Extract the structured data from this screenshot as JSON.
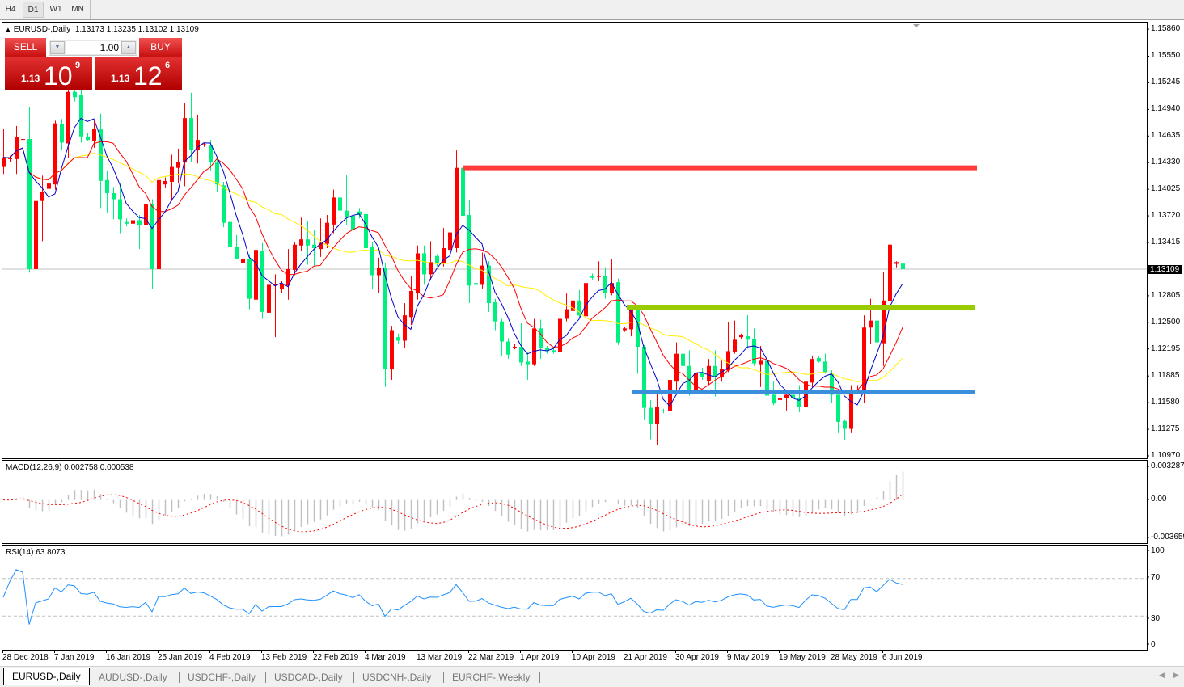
{
  "toolbar": {
    "timeframes": [
      "H4",
      "D1",
      "W1",
      "MN"
    ],
    "active": "D1"
  },
  "chart": {
    "symbol_title": "EURUSD-,Daily",
    "ohlc_readout": "1.13173 1.13235 1.13102 1.13109",
    "current_price": "1.13109",
    "price_axis": [
      "1.15860",
      "1.15550",
      "1.15245",
      "1.14940",
      "1.14635",
      "1.14330",
      "1.14025",
      "1.13720",
      "1.13415",
      "1.12805",
      "1.12500",
      "1.12195",
      "1.11885",
      "1.11580",
      "1.11275",
      "1.10970"
    ],
    "date_axis": [
      "28 Dec 2018",
      "7 Jan 2019",
      "16 Jan 2019",
      "25 Jan 2019",
      "4 Feb 2019",
      "13 Feb 2019",
      "22 Feb 2019",
      "4 Mar 2019",
      "13 Mar 2019",
      "22 Mar 2019",
      "1 Apr 2019",
      "10 Apr 2019",
      "21 Apr 2019",
      "30 Apr 2019",
      "9 May 2019",
      "19 May 2019",
      "28 May 2019",
      "6 Jun 2019"
    ]
  },
  "trade_panel": {
    "sell_label": "SELL",
    "buy_label": "BUY",
    "lot": "1.00",
    "sell_price": {
      "prefix": "1.13",
      "big": "10",
      "sup": "9"
    },
    "buy_price": {
      "prefix": "1.13",
      "big": "12",
      "sup": "6"
    }
  },
  "macd": {
    "label": "MACD(12,26,9) 0.002758 0.000538",
    "axis": [
      "0.003287",
      "0.00",
      "-0.003659"
    ]
  },
  "rsi": {
    "label": "RSI(14) 63.8073",
    "axis": [
      "100",
      "70",
      "30",
      "0"
    ],
    "levels": [
      70,
      30
    ]
  },
  "tabs": [
    "EURUSD-,Daily",
    "AUDUSD-,Daily",
    "USDCHF-,Daily",
    "USDCAD-,Daily",
    "USDCNH-,Daily",
    "EURCHF-,Weekly"
  ],
  "colors": {
    "bull": "#ff0000",
    "bear": "#00f07f",
    "ma_fast": "#0000cc",
    "ma_mid": "#ff0000",
    "ma_slow": "#ffee00",
    "rsi": "#1e90ff",
    "macd_hist": "#c0c0c0",
    "macd_signal": "#ff0000"
  },
  "chart_data": {
    "type": "candlestick",
    "ylim": [
      1.1097,
      1.1586
    ],
    "grid": false,
    "ohlc_order": [
      "open",
      "high",
      "low",
      "close"
    ],
    "ohlc": [
      [
        1.1428,
        1.1472,
        1.142,
        1.1439
      ],
      [
        1.1437,
        1.1441,
        1.1434,
        1.1438
      ],
      [
        1.1437,
        1.1475,
        1.142,
        1.1462
      ],
      [
        1.1459,
        1.1475,
        1.1453,
        1.146
      ],
      [
        1.146,
        1.1496,
        1.1307,
        1.1311
      ],
      [
        1.1311,
        1.1409,
        1.1309,
        1.1389
      ],
      [
        1.1389,
        1.1418,
        1.1343,
        1.1399
      ],
      [
        1.1403,
        1.1418,
        1.1402,
        1.1409
      ],
      [
        1.1408,
        1.1481,
        1.1402,
        1.1478
      ],
      [
        1.1477,
        1.1483,
        1.1448,
        1.1456
      ],
      [
        1.1455,
        1.1522,
        1.1438,
        1.1514
      ],
      [
        1.1514,
        1.1517,
        1.1503,
        1.1508
      ],
      [
        1.1511,
        1.1519,
        1.1456,
        1.1463
      ],
      [
        1.1463,
        1.1467,
        1.1458,
        1.1459
      ],
      [
        1.1458,
        1.1481,
        1.145,
        1.1472
      ],
      [
        1.1471,
        1.1489,
        1.1381,
        1.1412
      ],
      [
        1.1413,
        1.1424,
        1.1376,
        1.1398
      ],
      [
        1.1398,
        1.1405,
        1.1368,
        1.1391
      ],
      [
        1.1391,
        1.1409,
        1.1352,
        1.1368
      ],
      [
        1.1365,
        1.1369,
        1.136,
        1.1363
      ],
      [
        1.1363,
        1.139,
        1.1356,
        1.1367
      ],
      [
        1.1367,
        1.1373,
        1.1334,
        1.1361
      ],
      [
        1.1361,
        1.1393,
        1.1349,
        1.1385
      ],
      [
        1.1385,
        1.1391,
        1.1288,
        1.1311
      ],
      [
        1.1311,
        1.1434,
        1.1302,
        1.1413
      ],
      [
        1.1408,
        1.1416,
        1.1404,
        1.1412
      ],
      [
        1.1411,
        1.1442,
        1.1389,
        1.1428
      ],
      [
        1.1427,
        1.1449,
        1.1409,
        1.1434
      ],
      [
        1.1433,
        1.1501,
        1.1406,
        1.1484
      ],
      [
        1.1484,
        1.1513,
        1.1434,
        1.1447
      ],
      [
        1.1447,
        1.1488,
        1.1432,
        1.1459
      ],
      [
        1.1453,
        1.1456,
        1.1451,
        1.1454
      ],
      [
        1.1453,
        1.1459,
        1.1424,
        1.1433
      ],
      [
        1.1433,
        1.1439,
        1.1399,
        1.1408
      ],
      [
        1.1407,
        1.1411,
        1.1359,
        1.1364
      ],
      [
        1.1365,
        1.1366,
        1.1323,
        1.1336
      ],
      [
        1.1337,
        1.135,
        1.1322,
        1.1323
      ],
      [
        1.1318,
        1.1326,
        1.1316,
        1.1323
      ],
      [
        1.1323,
        1.1328,
        1.1265,
        1.1277
      ],
      [
        1.1276,
        1.134,
        1.1256,
        1.1333
      ],
      [
        1.1332,
        1.1341,
        1.1254,
        1.1262
      ],
      [
        1.1261,
        1.1309,
        1.1249,
        1.1293
      ],
      [
        1.1292,
        1.1305,
        1.1233,
        1.1294
      ],
      [
        1.1288,
        1.1297,
        1.1284,
        1.1294
      ],
      [
        1.1292,
        1.1334,
        1.1276,
        1.1311
      ],
      [
        1.131,
        1.1342,
        1.1304,
        1.1339
      ],
      [
        1.1338,
        1.137,
        1.1332,
        1.1345
      ],
      [
        1.1345,
        1.1366,
        1.1316,
        1.1338
      ],
      [
        1.1339,
        1.1356,
        1.1314,
        1.1335
      ],
      [
        1.1334,
        1.1369,
        1.1325,
        1.1341
      ],
      [
        1.134,
        1.1373,
        1.1335,
        1.1364
      ],
      [
        1.1362,
        1.1402,
        1.1352,
        1.1393
      ],
      [
        1.1393,
        1.1419,
        1.1362,
        1.1378
      ],
      [
        1.1378,
        1.1419,
        1.1362,
        1.1371
      ],
      [
        1.1372,
        1.1408,
        1.1352,
        1.1356
      ],
      [
        1.1377,
        1.1381,
        1.1369,
        1.1373
      ],
      [
        1.1374,
        1.1379,
        1.1308,
        1.1335
      ],
      [
        1.1336,
        1.1342,
        1.1288,
        1.1304
      ],
      [
        1.1304,
        1.1324,
        1.1284,
        1.1312
      ],
      [
        1.1312,
        1.1318,
        1.1176,
        1.1196
      ],
      [
        1.1196,
        1.1246,
        1.1184,
        1.1241
      ],
      [
        1.1233,
        1.1237,
        1.1226,
        1.1229
      ],
      [
        1.1229,
        1.1272,
        1.1221,
        1.1258
      ],
      [
        1.1256,
        1.1303,
        1.1247,
        1.1286
      ],
      [
        1.1284,
        1.1338,
        1.1276,
        1.1329
      ],
      [
        1.1329,
        1.1338,
        1.1293,
        1.1305
      ],
      [
        1.1305,
        1.1343,
        1.1299,
        1.1319
      ],
      [
        1.1326,
        1.1328,
        1.1314,
        1.1318
      ],
      [
        1.1318,
        1.1358,
        1.1314,
        1.1335
      ],
      [
        1.1333,
        1.1362,
        1.133,
        1.1353
      ],
      [
        1.1335,
        1.1447,
        1.133,
        1.1427
      ],
      [
        1.1427,
        1.1437,
        1.1342,
        1.1372
      ],
      [
        1.1373,
        1.139,
        1.1272,
        1.1292
      ],
      [
        1.1295,
        1.1297,
        1.1291,
        1.1293
      ],
      [
        1.1293,
        1.133,
        1.1288,
        1.1315
      ],
      [
        1.1315,
        1.132,
        1.1262,
        1.1272
      ],
      [
        1.1273,
        1.1277,
        1.1241,
        1.1251
      ],
      [
        1.1251,
        1.1254,
        1.1212,
        1.1228
      ],
      [
        1.1228,
        1.1232,
        1.1208,
        1.1213
      ],
      [
        1.1221,
        1.1225,
        1.1219,
        1.1222
      ],
      [
        1.1222,
        1.1249,
        1.12,
        1.1204
      ],
      [
        1.1205,
        1.1216,
        1.1184,
        1.1202
      ],
      [
        1.1202,
        1.1254,
        1.12,
        1.1243
      ],
      [
        1.1243,
        1.1253,
        1.1208,
        1.1221
      ],
      [
        1.1221,
        1.1223,
        1.1214,
        1.1217
      ],
      [
        1.1218,
        1.122,
        1.1214,
        1.1216
      ],
      [
        1.1216,
        1.1273,
        1.1213,
        1.1254
      ],
      [
        1.1254,
        1.1283,
        1.1251,
        1.1265
      ],
      [
        1.1263,
        1.1286,
        1.1228,
        1.1275
      ],
      [
        1.1275,
        1.1287,
        1.1255,
        1.1258
      ],
      [
        1.1257,
        1.1323,
        1.1254,
        1.1295
      ],
      [
        1.1303,
        1.1306,
        1.1299,
        1.1301
      ],
      [
        1.1302,
        1.132,
        1.1297,
        1.1303
      ],
      [
        1.1303,
        1.1313,
        1.1277,
        1.1284
      ],
      [
        1.1284,
        1.1323,
        1.1281,
        1.1295
      ],
      [
        1.1296,
        1.13,
        1.1224,
        1.1227
      ],
      [
        1.1241,
        1.1245,
        1.1239,
        1.1243
      ],
      [
        1.1242,
        1.1267,
        1.1234,
        1.1264
      ],
      [
        1.1264,
        1.1266,
        1.1191,
        1.1222
      ],
      [
        1.1222,
        1.1224,
        1.1138,
        1.1152
      ],
      [
        1.1152,
        1.1161,
        1.1116,
        1.1134
      ],
      [
        1.1134,
        1.1173,
        1.111,
        1.1153
      ],
      [
        1.1149,
        1.1151,
        1.1146,
        1.1148
      ],
      [
        1.1148,
        1.1186,
        1.1144,
        1.1184
      ],
      [
        1.1182,
        1.1227,
        1.1173,
        1.1214
      ],
      [
        1.1214,
        1.1263,
        1.1187,
        1.12
      ],
      [
        1.12,
        1.1218,
        1.1166,
        1.117
      ],
      [
        1.117,
        1.12,
        1.1134,
        1.1192
      ],
      [
        1.1193,
        1.1198,
        1.1184,
        1.1187
      ],
      [
        1.1183,
        1.1208,
        1.1178,
        1.12
      ],
      [
        1.12,
        1.1218,
        1.1165,
        1.1188
      ],
      [
        1.1187,
        1.1206,
        1.1182,
        1.1197
      ],
      [
        1.1195,
        1.125,
        1.1193,
        1.1217
      ],
      [
        1.1216,
        1.1252,
        1.1214,
        1.123
      ],
      [
        1.1233,
        1.1237,
        1.1231,
        1.1235
      ],
      [
        1.1234,
        1.1258,
        1.122,
        1.123
      ],
      [
        1.1231,
        1.1243,
        1.12,
        1.1203
      ],
      [
        1.1202,
        1.1223,
        1.1176,
        1.1206
      ],
      [
        1.1206,
        1.1223,
        1.1164,
        1.1166
      ],
      [
        1.1167,
        1.1183,
        1.1155,
        1.1157
      ],
      [
        1.1161,
        1.1166,
        1.1159,
        1.1163
      ],
      [
        1.1163,
        1.1173,
        1.1149,
        1.1167
      ],
      [
        1.1167,
        1.1187,
        1.1141,
        1.1163
      ],
      [
        1.1163,
        1.1178,
        1.1147,
        1.1153
      ],
      [
        1.1153,
        1.1186,
        1.1107,
        1.1182
      ],
      [
        1.1181,
        1.1212,
        1.1175,
        1.1208
      ],
      [
        1.1209,
        1.1211,
        1.1204,
        1.1205
      ],
      [
        1.1205,
        1.1214,
        1.1191,
        1.1193
      ],
      [
        1.1191,
        1.1195,
        1.1158,
        1.1167
      ],
      [
        1.1167,
        1.1169,
        1.1123,
        1.1136
      ],
      [
        1.1137,
        1.1138,
        1.1115,
        1.1128
      ],
      [
        1.1128,
        1.1178,
        1.1123,
        1.1173
      ],
      [
        1.1172,
        1.1178,
        1.1169,
        1.1173
      ],
      [
        1.1172,
        1.1258,
        1.1158,
        1.1244
      ],
      [
        1.1244,
        1.1277,
        1.1225,
        1.1252
      ],
      [
        1.1252,
        1.1305,
        1.1218,
        1.1227
      ],
      [
        1.1226,
        1.1308,
        1.12,
        1.1275
      ],
      [
        1.1274,
        1.1347,
        1.125,
        1.1339
      ],
      [
        1.1317,
        1.132,
        1.1313,
        1.1319
      ],
      [
        1.13173,
        1.13235,
        1.13102,
        1.13109
      ]
    ],
    "horizontal_levels": [
      {
        "price": 1.1427,
        "color": "#ff3b3b"
      },
      {
        "price": 1.1267,
        "color": "#99cc00"
      },
      {
        "price": 1.117,
        "color": "#3a8fdc"
      }
    ]
  }
}
